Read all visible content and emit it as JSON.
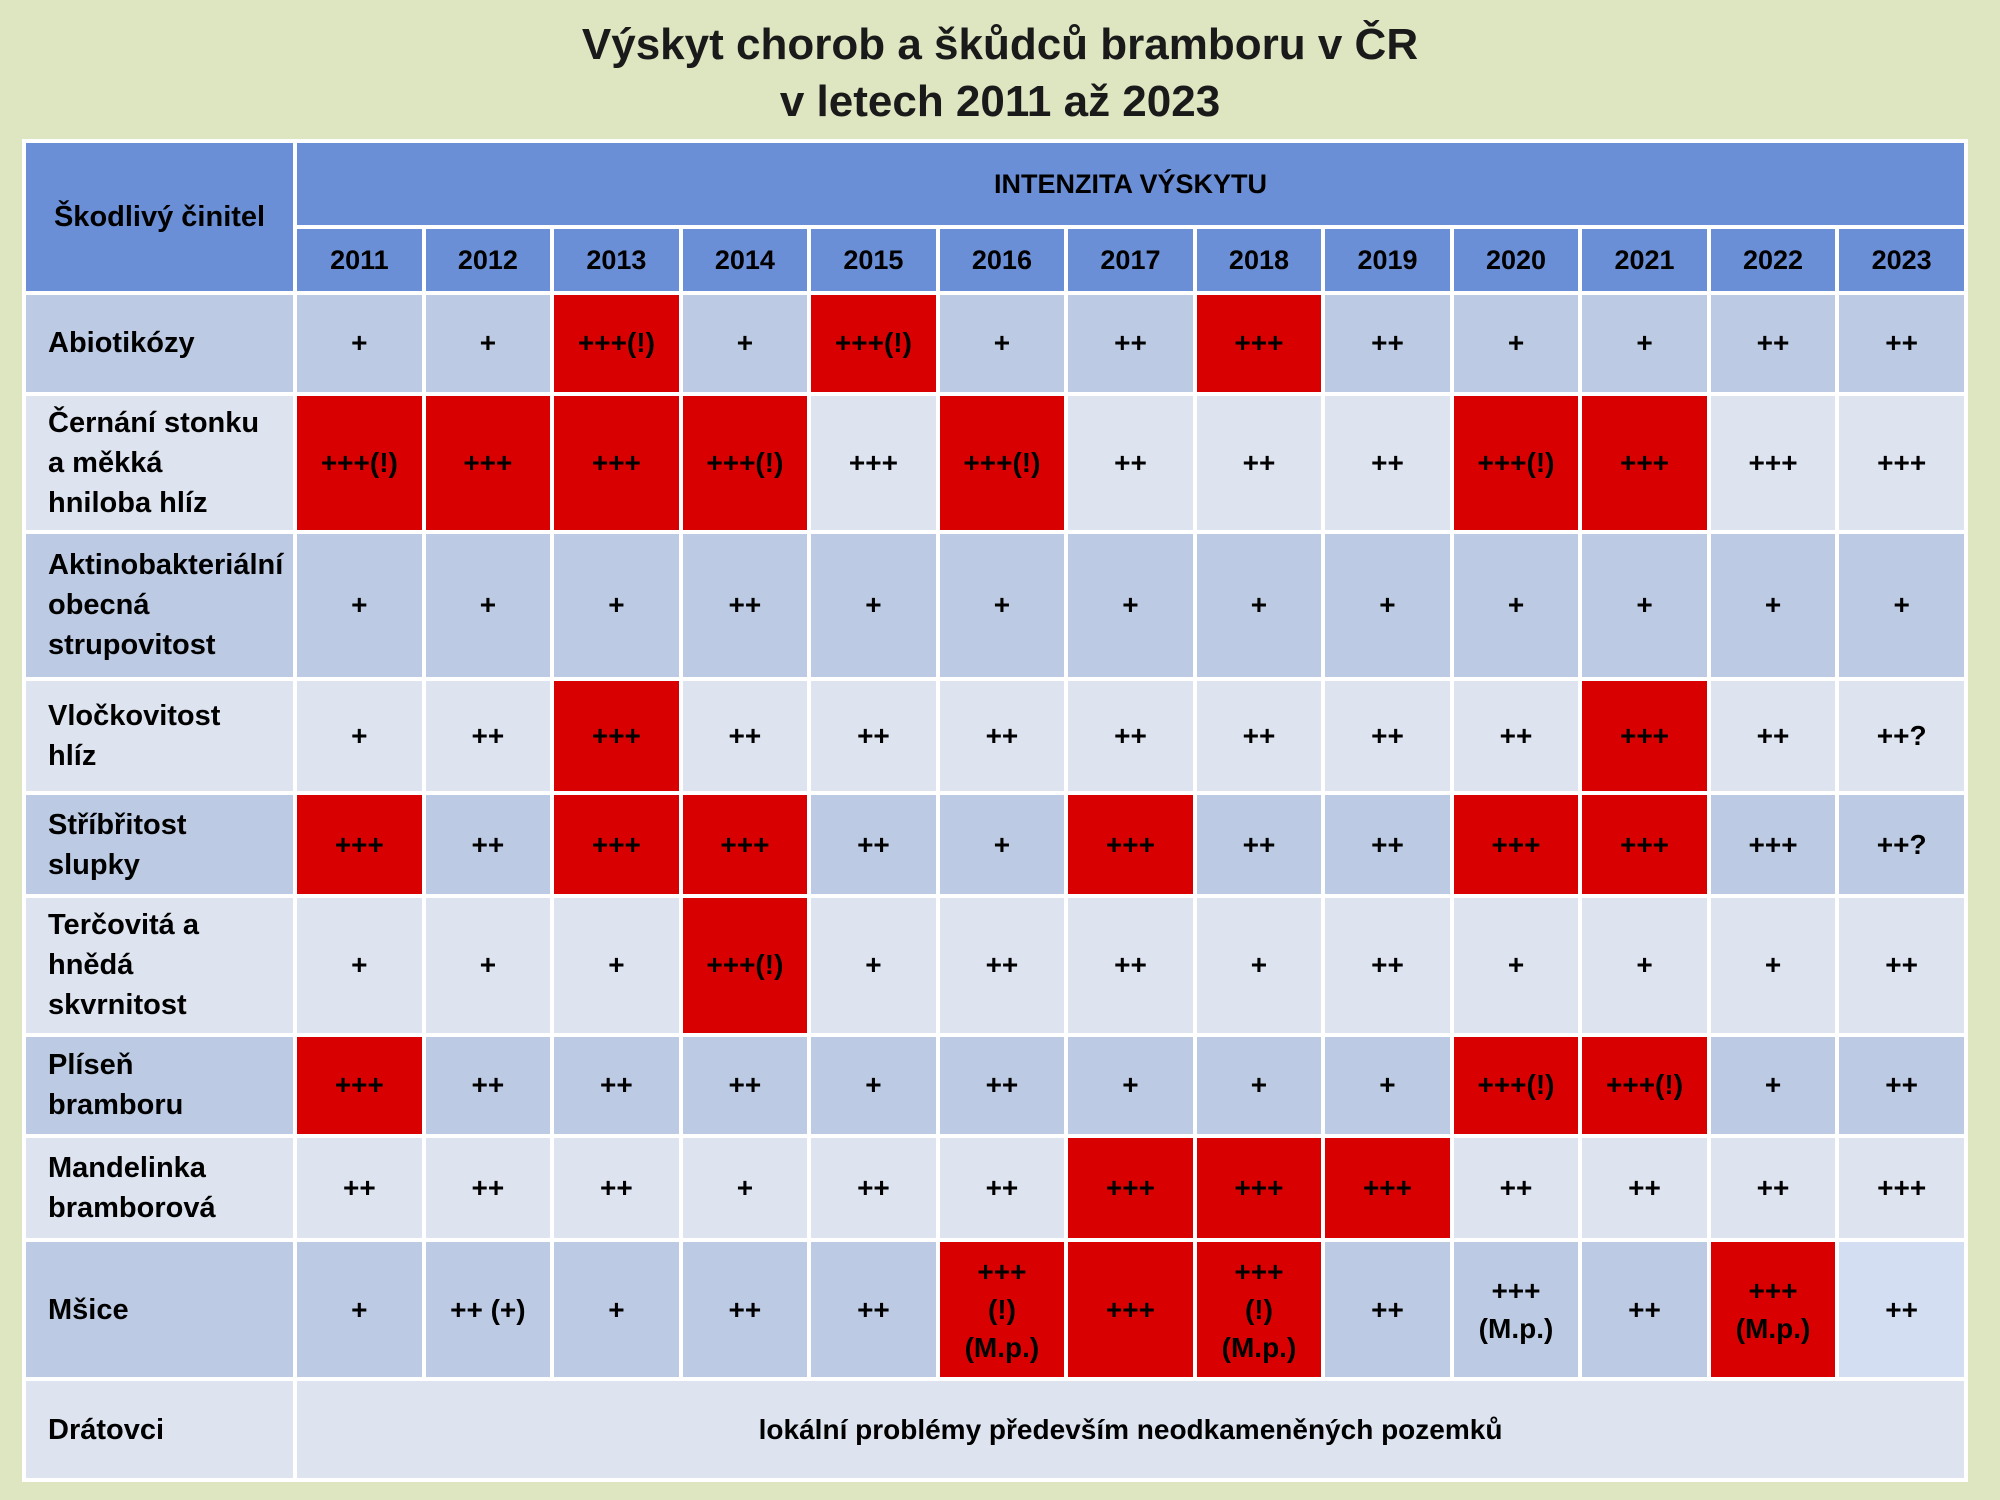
{
  "title": {
    "line1": "Výskyt chorob a škůdců bramboru v ČR",
    "line2": "v letech 2011 až 2023"
  },
  "header": {
    "row_label": "Škodlivý činitel",
    "group_label": "INTENZITA VÝSKYTU",
    "years": [
      "2011",
      "2012",
      "2013",
      "2014",
      "2015",
      "2016",
      "2017",
      "2018",
      "2019",
      "2020",
      "2021",
      "2022",
      "2023"
    ]
  },
  "colors": {
    "header_bg": "#6b8fd6",
    "row_dark": "#bccbe3",
    "row_light": "#dde4ef",
    "highlight": "#d80000",
    "background": "#dde5c1"
  },
  "rows": [
    {
      "label": "Abiotikózy",
      "values": [
        "+",
        "+",
        "+++(!)",
        "+",
        "+++(!)",
        "+",
        "++",
        "+++",
        "++",
        "+",
        "+",
        "++",
        "++"
      ],
      "highlight": [
        false,
        false,
        true,
        false,
        true,
        false,
        false,
        true,
        false,
        false,
        false,
        false,
        false
      ]
    },
    {
      "label": "Černání stonku\na měkká\nhniloba hlíz",
      "values": [
        "+++(!)",
        "+++",
        "+++",
        "+++(!)",
        "+++",
        "+++(!)",
        "++",
        "++",
        "++",
        "+++(!)",
        "+++",
        "+++",
        "+++"
      ],
      "highlight": [
        true,
        true,
        true,
        true,
        false,
        true,
        false,
        false,
        false,
        true,
        true,
        false,
        false
      ]
    },
    {
      "label": "Aktinobakteriální\nobecná\nstrupovitost",
      "values": [
        "+",
        "+",
        "+",
        "++",
        "+",
        "+",
        "+",
        "+",
        "+",
        "+",
        "+",
        "+",
        "+"
      ],
      "highlight": [
        false,
        false,
        false,
        false,
        false,
        false,
        false,
        false,
        false,
        false,
        false,
        false,
        false
      ]
    },
    {
      "label": "Vločkovitost\nhlíz",
      "values": [
        "+",
        "++",
        "+++",
        "++",
        "++",
        "++",
        "++",
        "++",
        "++",
        "++",
        "+++",
        "++",
        "++?"
      ],
      "highlight": [
        false,
        false,
        true,
        false,
        false,
        false,
        false,
        false,
        false,
        false,
        true,
        false,
        false
      ]
    },
    {
      "label": "Stříbřitost\nslupky",
      "values": [
        "+++",
        "++",
        "+++",
        "+++",
        "++",
        "+",
        "+++",
        "++",
        "++",
        "+++",
        "+++",
        "+++",
        "++?"
      ],
      "highlight": [
        true,
        false,
        true,
        true,
        false,
        false,
        true,
        false,
        false,
        true,
        true,
        false,
        false
      ]
    },
    {
      "label": "Terčovitá a\nhnědá\nskvrnitost",
      "values": [
        "+",
        "+",
        "+",
        "+++(!)",
        "+",
        "++",
        "++",
        "+",
        "++",
        "+",
        "+",
        "+",
        "++"
      ],
      "highlight": [
        false,
        false,
        false,
        true,
        false,
        false,
        false,
        false,
        false,
        false,
        false,
        false,
        false
      ]
    },
    {
      "label": "Plíseň\nbramboru",
      "values": [
        "+++",
        "++",
        "++",
        "++",
        "+",
        "++",
        "+",
        "+",
        "+",
        "+++(!)",
        "+++(!)",
        "+",
        "++"
      ],
      "highlight": [
        true,
        false,
        false,
        false,
        false,
        false,
        false,
        false,
        false,
        true,
        true,
        false,
        false
      ]
    },
    {
      "label": "Mandelinka\nbramborová",
      "values": [
        "++",
        "++",
        "++",
        "+",
        "++",
        "++",
        "+++",
        "+++",
        "+++",
        "++",
        "++",
        "++",
        "+++"
      ],
      "highlight": [
        false,
        false,
        false,
        false,
        false,
        false,
        true,
        true,
        true,
        false,
        false,
        false,
        false
      ]
    },
    {
      "label": "Mšice",
      "values": [
        "+",
        "++ (+)",
        "+",
        "++",
        "++",
        "+++\n(!)\n(M.p.)",
        "+++",
        "+++\n(!)\n(M.p.)",
        "++",
        "+++\n(M.p.)",
        "++",
        "+++\n(M.p.)",
        "++"
      ],
      "highlight": [
        false,
        false,
        false,
        false,
        false,
        true,
        true,
        true,
        false,
        false,
        false,
        true,
        false
      ]
    }
  ],
  "last_row": {
    "label": "Drátovci",
    "text": "lokální problémy především neodkameněných pozemků"
  }
}
